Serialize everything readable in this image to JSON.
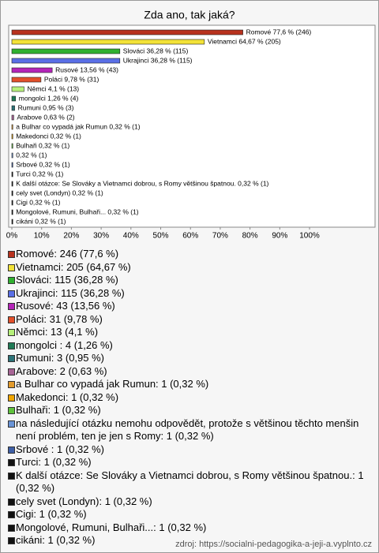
{
  "chart_data": {
    "type": "hbar",
    "title": "Zda ano, tak jaká?",
    "values": [
      77.6,
      64.67,
      36.28,
      36.28,
      13.56,
      9.78,
      4.1,
      1.26,
      0.95,
      0.63,
      0.32,
      0.32,
      0.32,
      0.32,
      0.32,
      0.32,
      0.32,
      0.32,
      0.32,
      0.32,
      0.32
    ],
    "value_labels": [
      "Romové 77,6 % (246)",
      "Vietnamci 64,67 % (205)",
      "Slováci 36,28 % (115)",
      "Ukrajinci 36,28 % (115)",
      "Rusové 13,56 % (43)",
      "Poláci 9,78 % (31)",
      "Němci 4,1 % (13)",
      "mongolci  1,26 % (4)",
      "Rumuni 0,95 % (3)",
      "Arabove 0,63 % (2)",
      "a Bulhar co vypadá jak Rumun 0,32 % (1)",
      "Makedonci 0,32 % (1)",
      "Bulhaři 0,32 % (1)",
      "0,32 % (1)",
      "Srbové  0,32 % (1)",
      "Turci 0,32 % (1)",
      "K další otázce: Se Slováky a Vietnamci dobrou, s Romy většinou špatnou. 0,32 % (1)",
      "cely svet (Londyn) 0,32 % (1)",
      "Cigi 0,32 % (1)",
      "Mongolové, Rumuni, Bulhaři... 0,32 % (1)",
      "cikáni 0,32 % (1)"
    ],
    "legend_labels": [
      "Romové: 246 (77,6 %)",
      "Vietnamci: 205 (64,67 %)",
      "Slováci: 115 (36,28 %)",
      "Ukrajinci: 115 (36,28 %)",
      "Rusové: 43 (13,56 %)",
      "Poláci: 31 (9,78 %)",
      "Němci: 13 (4,1 %)",
      "mongolci : 4 (1,26 %)",
      "Rumuni: 3 (0,95 %)",
      "Arabove: 2 (0,63 %)",
      "a Bulhar co vypadá jak Rumun: 1 (0,32 %)",
      "Makedonci: 1 (0,32 %)",
      "Bulhaři: 1 (0,32 %)",
      "na následující otázku nemohu odpovědět, protože s většinou těchto menšin není problém, ten je jen s Romy: 1 (0,32 %)",
      "Srbové : 1 (0,32 %)",
      "Turci: 1 (0,32 %)",
      "K další otázce: Se Slováky a Vietnamci dobrou, s Romy většinou špatnou.: 1 (0,32 %)",
      "cely svet (Londyn): 1 (0,32 %)",
      "Cigi: 1 (0,32 %)",
      "Mongolové, Rumuni, Bulhaři...: 1 (0,32 %)",
      "cikáni: 1 (0,32 %)"
    ],
    "colors": [
      "#b8321e",
      "#f2e238",
      "#2fb02f",
      "#5a6fe6",
      "#b425b8",
      "#e2502a",
      "#b6f07a",
      "#1f7a55",
      "#2c7378",
      "#a76595",
      "#e39b2c",
      "#f0a500",
      "#5fc23c",
      "#6a94d6",
      "#3e5fa6",
      "#111111",
      "#111111",
      "#111111",
      "#111111",
      "#111111",
      "#111111"
    ],
    "xlim": [
      0,
      122
    ],
    "xticks": [
      {
        "value": 0,
        "label": "0%"
      },
      {
        "value": 10,
        "label": "10%"
      },
      {
        "value": 20,
        "label": "20%"
      },
      {
        "value": 30,
        "label": "30%"
      },
      {
        "value": 40,
        "label": "40%"
      },
      {
        "value": 50,
        "label": "50%"
      },
      {
        "value": 60,
        "label": "60%"
      },
      {
        "value": 70,
        "label": "70%"
      },
      {
        "value": 80,
        "label": "80%"
      },
      {
        "value": 90,
        "label": "90%"
      },
      {
        "value": 100,
        "label": "100%"
      }
    ],
    "source": "zdroj:  https://socialni-pedagogika-a-jeji-a.vyplnto.cz"
  }
}
